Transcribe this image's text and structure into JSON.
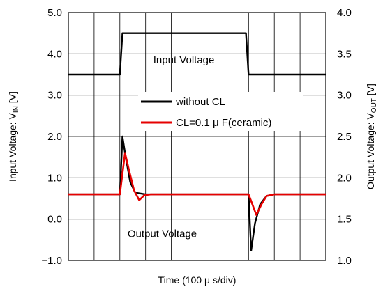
{
  "chart_data": {
    "type": "line",
    "xlabel": "Time (100 μ s/div)",
    "x_divisions": 10,
    "xlim": [
      0,
      10
    ],
    "left_axis": {
      "label_main": "Input Voltage: V",
      "label_sub": "IN",
      "label_unit": " [V]",
      "ylim": [
        -1.0,
        5.0
      ],
      "ticks": [
        "5.0",
        "4.0",
        "3.0",
        "2.0",
        "1.0",
        "0.0",
        "−1.0"
      ],
      "tick_values": [
        5.0,
        4.0,
        3.0,
        2.0,
        1.0,
        0.0,
        -1.0
      ]
    },
    "right_axis": {
      "label_main": "Output Voltage: V",
      "label_sub": "OUT",
      "label_unit": " [V]",
      "ylim": [
        1.0,
        4.0
      ],
      "ticks": [
        "4.0",
        "3.5",
        "3.0",
        "2.5",
        "2.0",
        "1.5",
        "1.0"
      ],
      "tick_values": [
        4.0,
        3.5,
        3.0,
        2.5,
        2.0,
        1.5,
        1.0
      ]
    },
    "grid": true,
    "annotations": [
      {
        "text": "Input Voltage",
        "x": 3.3,
        "y": 3.85
      },
      {
        "text": "Output Voltage",
        "x": 2.3,
        "y": -0.35
      }
    ],
    "legend": {
      "position": "upper-middle",
      "entries": [
        {
          "label": "without CL",
          "color": "#000000"
        },
        {
          "label": "CL=0.1 μ F(ceramic)",
          "color": "#e60000"
        }
      ]
    },
    "series": [
      {
        "name": "Input Voltage",
        "axis": "left",
        "color": "#000000",
        "points": [
          [
            0.0,
            3.5
          ],
          [
            2.0,
            3.5
          ],
          [
            2.1,
            4.5
          ],
          [
            6.9,
            4.5
          ],
          [
            7.0,
            3.5
          ],
          [
            10.0,
            3.5
          ]
        ]
      },
      {
        "name": "without CL",
        "axis": "right",
        "color": "#000000",
        "points": [
          [
            0.0,
            1.8
          ],
          [
            2.0,
            1.8
          ],
          [
            2.1,
            2.5
          ],
          [
            2.2,
            2.3
          ],
          [
            2.4,
            1.95
          ],
          [
            2.6,
            1.82
          ],
          [
            3.0,
            1.8
          ],
          [
            7.0,
            1.8
          ],
          [
            7.1,
            1.12
          ],
          [
            7.25,
            1.45
          ],
          [
            7.45,
            1.68
          ],
          [
            7.7,
            1.78
          ],
          [
            8.0,
            1.8
          ],
          [
            10.0,
            1.8
          ]
        ]
      },
      {
        "name": "CL=0.1 μ F(ceramic)",
        "axis": "right",
        "color": "#e60000",
        "points": [
          [
            0.0,
            1.8
          ],
          [
            2.0,
            1.8
          ],
          [
            2.2,
            2.3
          ],
          [
            2.35,
            2.1
          ],
          [
            2.55,
            1.85
          ],
          [
            2.75,
            1.73
          ],
          [
            2.95,
            1.79
          ],
          [
            3.2,
            1.8
          ],
          [
            7.0,
            1.8
          ],
          [
            7.1,
            1.72
          ],
          [
            7.3,
            1.55
          ],
          [
            7.5,
            1.68
          ],
          [
            7.7,
            1.78
          ],
          [
            8.0,
            1.8
          ],
          [
            10.0,
            1.8
          ]
        ]
      }
    ]
  }
}
